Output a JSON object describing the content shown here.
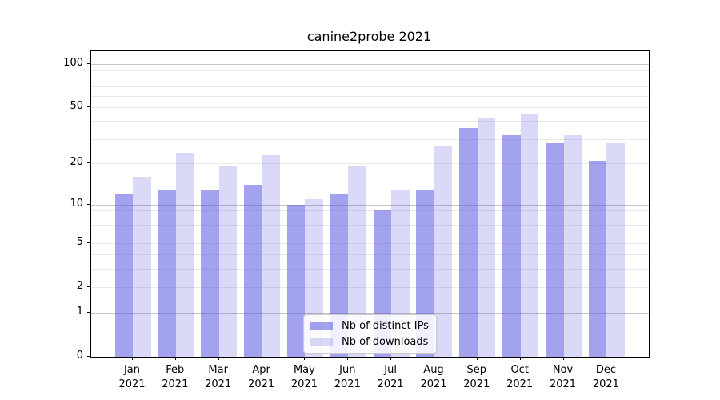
{
  "title": "canine2probe 2021",
  "legend": {
    "items": [
      {
        "label": "Nb of distinct IPs",
        "color": "rgba(85,85,224,0.55)",
        "hex_approx": "#a9a9f0"
      },
      {
        "label": "Nb of downloads",
        "color": "rgba(85,85,224,0.22)",
        "hex_approx": "#dcdcf9"
      }
    ]
  },
  "chart_data": {
    "type": "bar",
    "title": "canine2probe 2021",
    "categories": [
      "Jan",
      "Feb",
      "Mar",
      "Apr",
      "May",
      "Jun",
      "Jul",
      "Aug",
      "Sep",
      "Oct",
      "Nov",
      "Dec"
    ],
    "year_label": "2021",
    "series": [
      {
        "name": "Nb of distinct IPs",
        "values": [
          12,
          13,
          13,
          14,
          10,
          12,
          9,
          13,
          36,
          32,
          28,
          21
        ]
      },
      {
        "name": "Nb of downloads",
        "values": [
          16,
          24,
          19,
          23,
          11,
          19,
          13,
          27,
          42,
          45,
          32,
          28
        ]
      }
    ],
    "xlabel": "",
    "ylabel": "",
    "yscale": "log1p",
    "yticks": [
      0,
      1,
      2,
      5,
      10,
      20,
      50,
      100
    ],
    "ylim": [
      0,
      121
    ],
    "grid": "horizontal",
    "major_gridlines": [
      1,
      10,
      100
    ],
    "minor_gridlines": [
      2,
      3,
      4,
      5,
      6,
      7,
      8,
      9,
      20,
      30,
      40,
      50,
      60,
      70,
      80,
      90
    ],
    "legend_position": "lower center",
    "bar_colors": {
      "nb_of_distinct_ips": "rgba(85,85,224,0.55)",
      "nb_of_downloads": "rgba(85,85,224,0.22)"
    }
  }
}
